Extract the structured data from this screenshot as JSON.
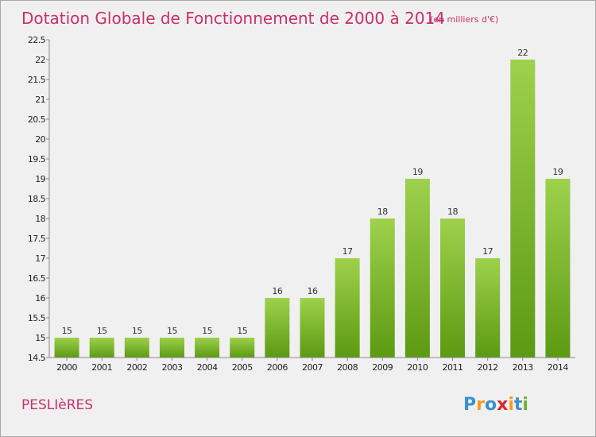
{
  "chart_data": {
    "type": "bar",
    "title": "Dotation Globale de Fonctionnement de 2000 à 2014",
    "subtitle": "(en milliers d'€)",
    "categories": [
      "2000",
      "2001",
      "2002",
      "2003",
      "2004",
      "2005",
      "2006",
      "2007",
      "2008",
      "2009",
      "2010",
      "2011",
      "2012",
      "2013",
      "2014"
    ],
    "values": [
      15,
      15,
      15,
      15,
      15,
      15,
      16,
      16,
      17,
      18,
      19,
      18,
      17,
      22,
      19
    ],
    "value_labels": [
      "15",
      "15",
      "15",
      "15",
      "15",
      "15",
      "16",
      "16",
      "17",
      "18",
      "19",
      "18",
      "17",
      "22",
      "19"
    ],
    "ylim": [
      14.5,
      22.5
    ],
    "yticks": [
      "14.5",
      "15",
      "15.5",
      "16",
      "16.5",
      "17",
      "17.5",
      "18",
      "18.5",
      "19",
      "19.5",
      "20",
      "20.5",
      "21",
      "21.5",
      "22",
      "22.5"
    ],
    "xlabel": "",
    "ylabel": "",
    "grid": false,
    "bar_color": "#78b82a"
  },
  "commune": "PESLIèRES",
  "brand": {
    "letters": [
      "P",
      "r",
      "o",
      "x",
      "i",
      "t",
      "i"
    ],
    "colors": [
      "#3a8fd0",
      "#f39a1e",
      "#3a8fd0",
      "#d8262e",
      "#f39a1e",
      "#3a8fd0",
      "#6cb52d"
    ]
  }
}
